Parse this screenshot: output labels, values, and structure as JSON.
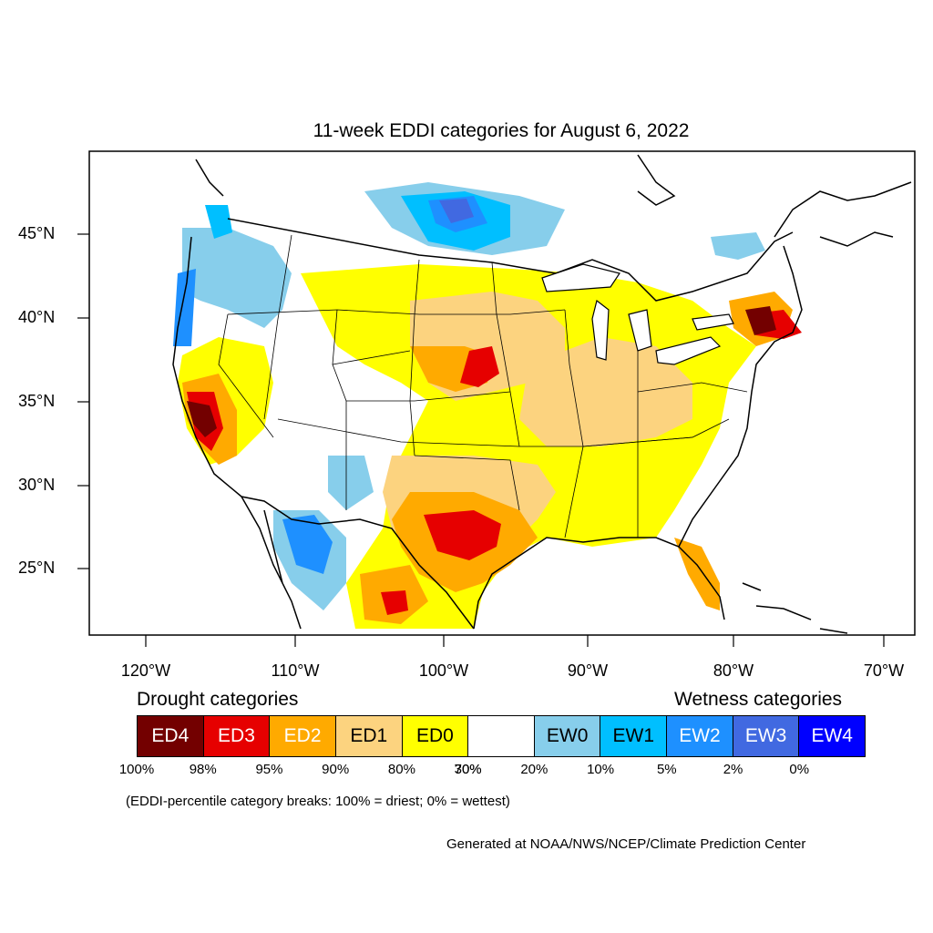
{
  "title": "11-week EDDI categories for August 6, 2022",
  "lat_labels": [
    "45°N",
    "40°N",
    "35°N",
    "30°N",
    "25°N"
  ],
  "lon_labels": [
    "120°W",
    "110°W",
    "100°W",
    "90°W",
    "80°W",
    "70°W"
  ],
  "legend": {
    "drought_heading": "Drought categories",
    "wetness_heading": "Wetness categories",
    "categories": [
      {
        "label": "ED4",
        "color": "#730000",
        "text_color": "#ffffff"
      },
      {
        "label": "ED3",
        "color": "#e60000",
        "text_color": "#ffffff"
      },
      {
        "label": "ED2",
        "color": "#ffaa00",
        "text_color": "#ffffff"
      },
      {
        "label": "ED1",
        "color": "#fcd37f",
        "text_color": "#000000"
      },
      {
        "label": "ED0",
        "color": "#ffff00",
        "text_color": "#000000"
      },
      {
        "label": "",
        "color": "#ffffff",
        "text_color": "#000000"
      },
      {
        "label": "EW0",
        "color": "#87ceeb",
        "text_color": "#000000"
      },
      {
        "label": "EW1",
        "color": "#00bfff",
        "text_color": "#000000"
      },
      {
        "label": "EW2",
        "color": "#1e90ff",
        "text_color": "#ffffff"
      },
      {
        "label": "EW3",
        "color": "#4169e1",
        "text_color": "#ffffff"
      },
      {
        "label": "EW4",
        "color": "#0000ff",
        "text_color": "#ffffff"
      }
    ],
    "percentiles": [
      "100%",
      "98%",
      "95%",
      "90%",
      "80%",
      "70%",
      "30%",
      "20%",
      "10%",
      "5%",
      "2%",
      "0%"
    ]
  },
  "footnote": "(EDDI-percentile category breaks: 100% = driest; 0% = wettest)",
  "credit": "Generated at NOAA/NWS/NCEP/Climate Prediction Center"
}
